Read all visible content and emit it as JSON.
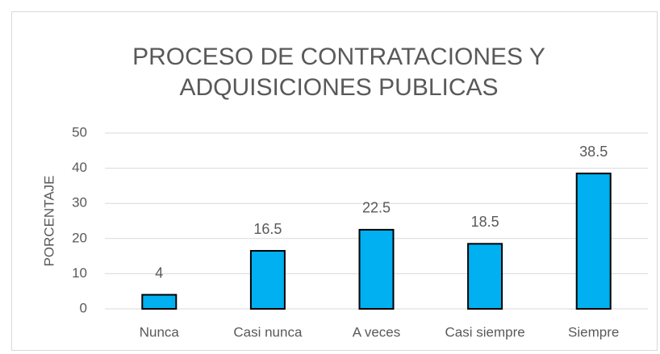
{
  "chart_data": {
    "type": "bar",
    "title": [
      "PROCESO DE CONTRATACIONES Y",
      "ADQUISICIONES PUBLICAS"
    ],
    "y_label": "PORCENTAJE",
    "categories": [
      "Nunca",
      "Casi nunca",
      "A veces",
      "Casi siempre",
      "Siempre"
    ],
    "values": [
      4,
      16.5,
      22.5,
      18.5,
      38.5
    ],
    "color": "#00b0f0",
    "ylim": [
      0,
      50
    ],
    "yticks": [
      0,
      10,
      20,
      30,
      40,
      50
    ],
    "grid": true
  }
}
